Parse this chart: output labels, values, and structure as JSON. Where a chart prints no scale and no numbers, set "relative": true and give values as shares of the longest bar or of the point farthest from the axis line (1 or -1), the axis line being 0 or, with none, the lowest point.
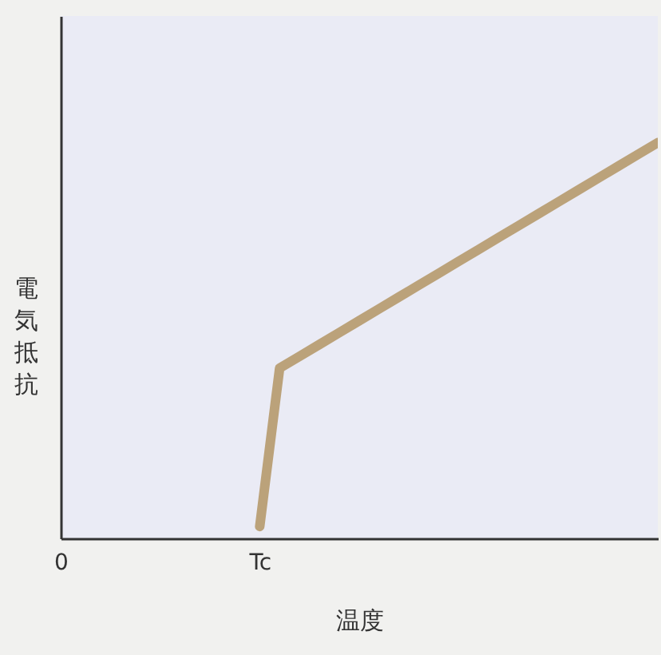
{
  "chart_data": {
    "type": "line",
    "relative": true,
    "xlabel": "温度",
    "ylabel": "電気抵抗",
    "categories": [
      "0",
      null,
      null,
      null,
      null,
      null,
      null,
      null,
      null,
      null,
      "Tc",
      null,
      null,
      null,
      null,
      null,
      null,
      null,
      null,
      null,
      null,
      null,
      null,
      null,
      null,
      null,
      null,
      null,
      null,
      null,
      null
    ],
    "series": [
      {
        "color": "#bba27a",
        "values": [
          null,
          null,
          null,
          null,
          null,
          null,
          null,
          null,
          null,
          null,
          0.03,
          0.43,
          0.46,
          0.49,
          0.52,
          0.55,
          0.58,
          0.61,
          0.64,
          0.67,
          0.7,
          0.73,
          0.76,
          0.79,
          0.82,
          0.85,
          0.88,
          0.91,
          0.94,
          0.97,
          1.0
        ]
      }
    ],
    "grid": false,
    "legend": false,
    "marker": "none",
    "line_style": "solid"
  }
}
